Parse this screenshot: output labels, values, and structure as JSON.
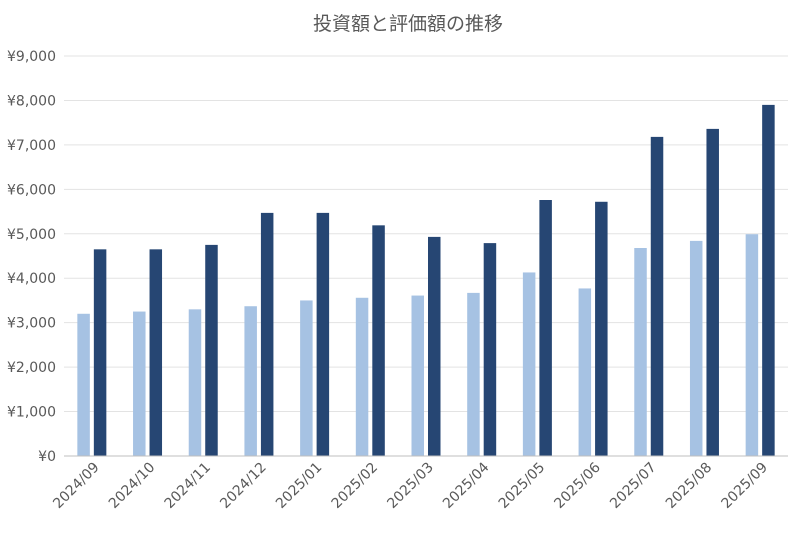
{
  "chart_data": {
    "type": "bar",
    "title": "投資額と評価額の推移",
    "xlabel": "",
    "ylabel": "",
    "ylim": [
      0,
      9000
    ],
    "yticks": [
      0,
      1000,
      2000,
      3000,
      4000,
      5000,
      6000,
      7000,
      8000,
      9000
    ],
    "ytick_labels": [
      "¥0",
      "¥1,000",
      "¥2,000",
      "¥3,000",
      "¥4,000",
      "¥5,000",
      "¥6,000",
      "¥7,000",
      "¥8,000",
      "¥9,000"
    ],
    "grid": true,
    "legend": "none",
    "categories": [
      "2024/09",
      "2024/10",
      "2024/11",
      "2024/12",
      "2025/01",
      "2025/02",
      "2025/03",
      "2025/04",
      "2025/05",
      "2025/06",
      "2025/07",
      "2025/08",
      "2025/09"
    ],
    "series": [
      {
        "color": "#a6c2e3",
        "values": [
          3200,
          3250,
          3300,
          3370,
          3500,
          3560,
          3610,
          3670,
          4130,
          3770,
          4680,
          4840,
          4990
        ]
      },
      {
        "color": "#264673",
        "values": [
          4650,
          4650,
          4750,
          5470,
          5470,
          5190,
          4930,
          4790,
          5760,
          5720,
          7180,
          7360,
          7900
        ]
      }
    ]
  }
}
